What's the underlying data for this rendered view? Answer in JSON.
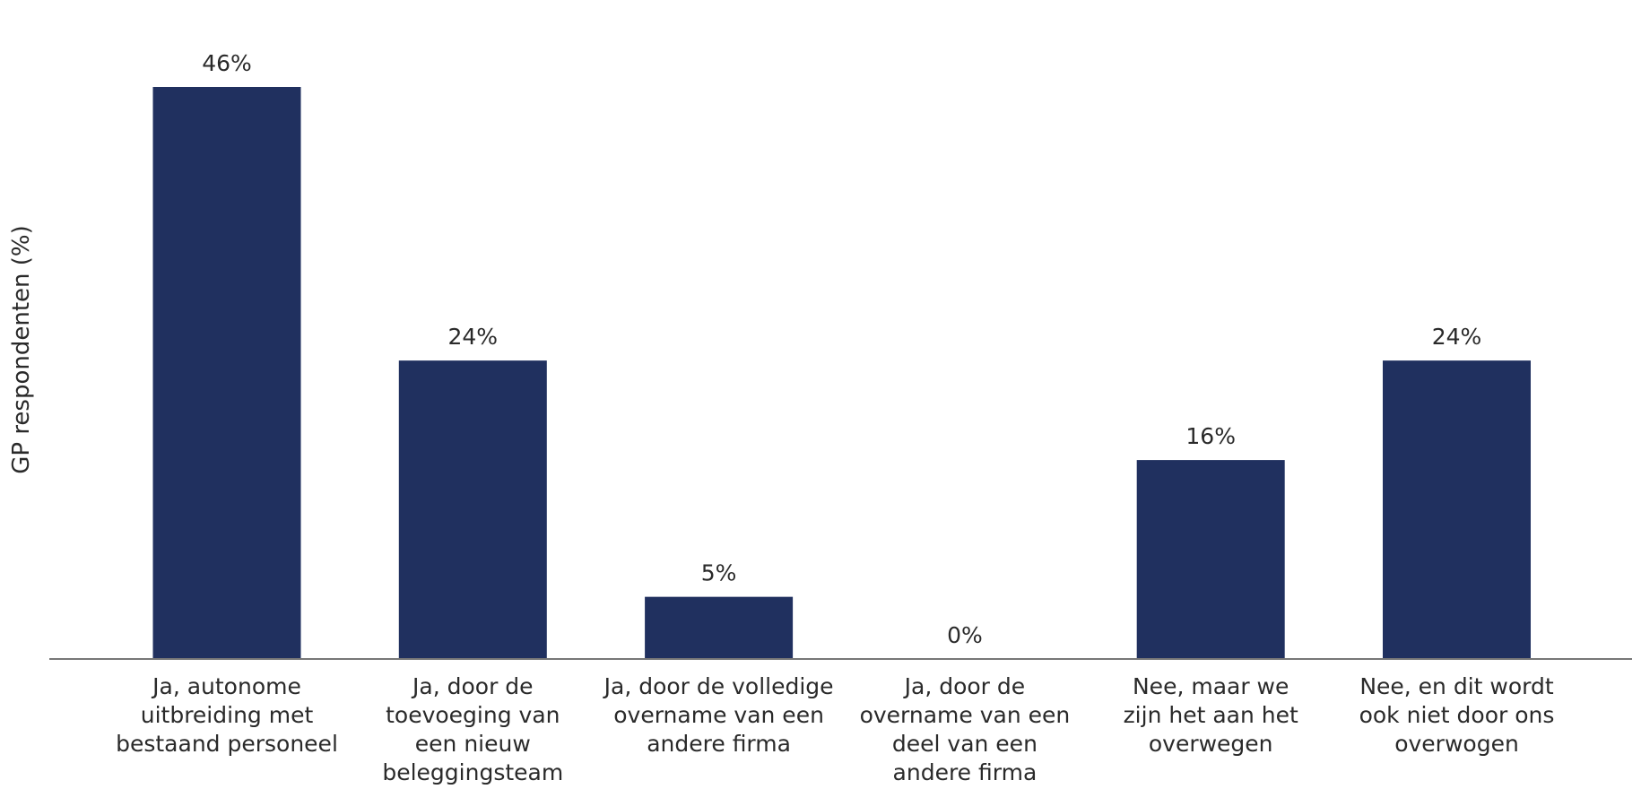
{
  "chart_data": {
    "type": "bar",
    "ylabel": "GP respondenten (%)",
    "categories": [
      [
        "Ja, autonome",
        "uitbreiding met",
        "bestaand personeel"
      ],
      [
        "Ja, door de",
        "toevoeging van",
        "een nieuw",
        "beleggingsteam"
      ],
      [
        "Ja, door de volledige",
        "overname van een",
        "andere firma"
      ],
      [
        "Ja, door de",
        "overname van een",
        "deel van een",
        "andere firma"
      ],
      [
        "Nee, maar we",
        "zijn het aan het",
        "overwegen"
      ],
      [
        "Nee, en dit wordt",
        "ook niet door ons",
        "overwogen"
      ]
    ],
    "values": [
      46,
      24,
      5,
      0,
      16,
      24
    ],
    "value_labels": [
      "46%",
      "24%",
      "5%",
      "0%",
      "16%",
      "24%"
    ],
    "ylim": [
      0,
      46
    ],
    "grid": false,
    "legend": "none",
    "colors": {
      "bar": "#20305f",
      "axis": "#777777",
      "text": "#2a2a2a"
    }
  }
}
